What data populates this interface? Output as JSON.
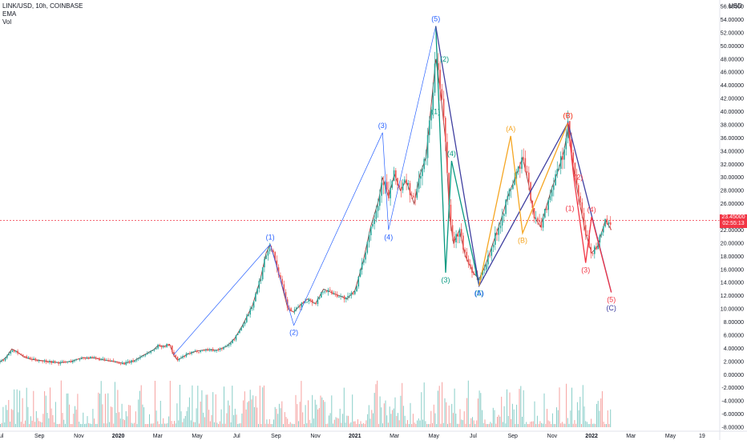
{
  "legend": {
    "symbol": "LINK/USD, 10h, COINBASE",
    "ema": "EMA",
    "vol": "Vol"
  },
  "price_axis": {
    "unit": "USD",
    "last_price": "23.45000",
    "countdown": "02:55:13"
  },
  "colors": {
    "up_candle": "#26a69a",
    "down_candle": "#ef5350",
    "blue_wave": "#2962ff",
    "green_wave": "#089981",
    "orange_wave": "#f5a623",
    "red_wave": "#f23645",
    "purple_wave": "#3f3fa0",
    "last_price_line": "#f23645"
  },
  "chart_data": {
    "type": "line",
    "title": "LINK/USD, 10h, COINBASE",
    "xlabel": "",
    "ylabel": "USD",
    "ylim": [
      -8,
      56
    ],
    "y_ticks": [
      "-8.00000",
      "-6.00000",
      "-4.00000",
      "-2.00000",
      "0.00000",
      "2.00000",
      "4.00000",
      "6.00000",
      "8.00000",
      "10.00000",
      "12.00000",
      "14.00000",
      "16.00000",
      "18.00000",
      "20.00000",
      "22.00000",
      "24.00000",
      "26.00000",
      "28.00000",
      "30.00000",
      "32.00000",
      "34.00000",
      "36.00000",
      "38.00000",
      "40.00000",
      "42.00000",
      "44.00000",
      "46.00000",
      "48.00000",
      "50.00000",
      "52.00000",
      "54.00000",
      "56.00000"
    ],
    "x_ticks": [
      "Jul",
      "Sep",
      "Nov",
      "2020",
      "Mar",
      "May",
      "Jul",
      "Sep",
      "Nov",
      "2021",
      "Mar",
      "May",
      "Jul",
      "Sep",
      "Nov",
      "2022",
      "Mar",
      "May",
      "19"
    ],
    "x_tick_months": [
      0,
      2,
      4,
      6,
      8,
      10,
      12,
      14,
      16,
      18,
      20,
      22,
      24,
      26,
      28,
      30,
      32,
      34,
      35.6
    ],
    "grid": false,
    "legend_position": "top-left",
    "price_path": [
      [
        0.0,
        1.9
      ],
      [
        0.3,
        2.6
      ],
      [
        0.6,
        3.9
      ],
      [
        0.9,
        3.4
      ],
      [
        1.2,
        2.7
      ],
      [
        1.6,
        2.3
      ],
      [
        2.2,
        2.1
      ],
      [
        3.0,
        1.8
      ],
      [
        3.6,
        2.0
      ],
      [
        4.2,
        2.6
      ],
      [
        4.8,
        2.5
      ],
      [
        5.3,
        2.2
      ],
      [
        5.9,
        1.9
      ],
      [
        6.3,
        1.7
      ],
      [
        6.8,
        2.1
      ],
      [
        7.3,
        3.0
      ],
      [
        7.8,
        3.8
      ],
      [
        8.0,
        4.4
      ],
      [
        8.3,
        4.3
      ],
      [
        8.6,
        4.6
      ],
      [
        8.8,
        3.0
      ],
      [
        9.0,
        2.2
      ],
      [
        9.5,
        3.1
      ],
      [
        10.0,
        3.6
      ],
      [
        10.5,
        3.8
      ],
      [
        11.0,
        3.7
      ],
      [
        11.5,
        4.3
      ],
      [
        11.9,
        5.5
      ],
      [
        12.3,
        7.5
      ],
      [
        12.8,
        10.5
      ],
      [
        13.2,
        14.5
      ],
      [
        13.5,
        18.5
      ],
      [
        13.7,
        19.8
      ],
      [
        14.0,
        17.0
      ],
      [
        14.3,
        13.5
      ],
      [
        14.6,
        10.0
      ],
      [
        14.9,
        9.5
      ],
      [
        15.2,
        10.5
      ],
      [
        15.6,
        11.5
      ],
      [
        16.0,
        10.8
      ],
      [
        16.4,
        13.0
      ],
      [
        16.8,
        12.5
      ],
      [
        17.2,
        12.0
      ],
      [
        17.6,
        11.5
      ],
      [
        18.0,
        12.8
      ],
      [
        18.4,
        17.0
      ],
      [
        18.8,
        22.5
      ],
      [
        19.2,
        26.5
      ],
      [
        19.4,
        30.0
      ],
      [
        19.7,
        27.0
      ],
      [
        20.0,
        30.5
      ],
      [
        20.3,
        28.0
      ],
      [
        20.6,
        29.5
      ],
      [
        21.0,
        26.0
      ],
      [
        21.3,
        30.5
      ],
      [
        21.6,
        33.0
      ],
      [
        21.9,
        42.0
      ],
      [
        22.1,
        48.0
      ],
      [
        22.3,
        44.0
      ],
      [
        22.6,
        35.5
      ],
      [
        22.8,
        24.0
      ],
      [
        23.0,
        20.0
      ],
      [
        23.3,
        22.0
      ],
      [
        23.6,
        18.0
      ],
      [
        24.0,
        15.5
      ],
      [
        24.3,
        14.5
      ],
      [
        24.6,
        16.5
      ],
      [
        25.0,
        20.0
      ],
      [
        25.4,
        23.5
      ],
      [
        25.8,
        27.5
      ],
      [
        26.2,
        30.5
      ],
      [
        26.5,
        33.0
      ],
      [
        26.8,
        29.0
      ],
      [
        27.1,
        24.0
      ],
      [
        27.4,
        22.5
      ],
      [
        27.7,
        25.5
      ],
      [
        28.0,
        28.5
      ],
      [
        28.3,
        31.0
      ],
      [
        28.6,
        34.0
      ],
      [
        28.8,
        37.5
      ],
      [
        29.1,
        31.0
      ],
      [
        29.4,
        26.0
      ],
      [
        29.7,
        21.5
      ],
      [
        30.0,
        18.5
      ],
      [
        30.3,
        19.5
      ],
      [
        30.5,
        21.5
      ],
      [
        30.7,
        23.5
      ],
      [
        31.0,
        22.0
      ]
    ],
    "wave_lines": [
      {
        "color": "blue",
        "points": [
          [
            8.8,
            3.0
          ],
          [
            13.7,
            19.8
          ],
          [
            14.9,
            7.5
          ],
          [
            19.4,
            36.8
          ],
          [
            19.7,
            22.0
          ],
          [
            22.1,
            53.0
          ]
        ]
      },
      {
        "color": "green",
        "points": [
          [
            22.1,
            53.0
          ],
          [
            22.6,
            15.5
          ],
          [
            22.9,
            32.5
          ],
          [
            24.3,
            13.5
          ]
        ]
      },
      {
        "color": "purple",
        "points": [
          [
            22.1,
            53.0
          ],
          [
            24.3,
            13.5
          ],
          [
            28.8,
            38.3
          ],
          [
            31.0,
            12.5
          ]
        ]
      },
      {
        "color": "orange",
        "points": [
          [
            24.3,
            13.5
          ],
          [
            25.9,
            36.3
          ],
          [
            26.5,
            21.5
          ],
          [
            28.8,
            38.3
          ]
        ]
      },
      {
        "color": "red",
        "points": [
          [
            28.8,
            38.3
          ],
          [
            29.1,
            30.0
          ],
          [
            29.7,
            17.0
          ],
          [
            30.0,
            24.0
          ],
          [
            31.0,
            12.5
          ]
        ]
      }
    ],
    "wave_labels": [
      {
        "label": "(1)",
        "x": 13.7,
        "y": 19.8,
        "color": "blue",
        "pos": "above"
      },
      {
        "label": "(2)",
        "x": 14.9,
        "y": 7.5,
        "color": "blue",
        "pos": "below"
      },
      {
        "label": "(3)",
        "x": 19.4,
        "y": 36.8,
        "color": "blue",
        "pos": "above"
      },
      {
        "label": "(4)",
        "x": 19.7,
        "y": 22.0,
        "color": "blue",
        "pos": "below"
      },
      {
        "label": "(5)",
        "x": 22.1,
        "y": 53.0,
        "color": "blue",
        "pos": "above"
      },
      {
        "label": "(2)",
        "x": 22.3,
        "y": 48.0,
        "color": "green",
        "pos": "right"
      },
      {
        "label": "(1)",
        "x": 22.1,
        "y": 40.0,
        "color": "green",
        "pos": "center"
      },
      {
        "label": "(4)",
        "x": 22.9,
        "y": 32.5,
        "color": "green",
        "pos": "above"
      },
      {
        "label": "(3)",
        "x": 22.6,
        "y": 15.5,
        "color": "green",
        "pos": "below"
      },
      {
        "label": "(5)",
        "x": 24.3,
        "y": 13.5,
        "color": "green",
        "pos": "below"
      },
      {
        "label": "(A)",
        "x": 24.3,
        "y": 13.5,
        "color": "blue",
        "pos": "below"
      },
      {
        "label": "(A)",
        "x": 25.9,
        "y": 36.3,
        "color": "orange",
        "pos": "above"
      },
      {
        "label": "(B)",
        "x": 26.5,
        "y": 21.5,
        "color": "orange",
        "pos": "below"
      },
      {
        "label": "(C)",
        "x": 28.8,
        "y": 38.3,
        "color": "orange",
        "pos": "above"
      },
      {
        "label": "(B)",
        "x": 28.8,
        "y": 38.3,
        "color": "red",
        "pos": "above"
      },
      {
        "label": "(2)",
        "x": 29.1,
        "y": 30.0,
        "color": "red",
        "pos": "right"
      },
      {
        "label": "(1)",
        "x": 28.9,
        "y": 25.3,
        "color": "red",
        "pos": "center"
      },
      {
        "label": "(3)",
        "x": 29.7,
        "y": 17.0,
        "color": "red",
        "pos": "below"
      },
      {
        "label": "(4)",
        "x": 30.0,
        "y": 24.0,
        "color": "red",
        "pos": "above"
      },
      {
        "label": "(5)",
        "x": 31.0,
        "y": 12.5,
        "color": "red",
        "pos": "below"
      },
      {
        "label": "(C)",
        "x": 31.0,
        "y": 11.2,
        "color": "purple",
        "pos": "below"
      }
    ],
    "last_price": 23.45
  }
}
